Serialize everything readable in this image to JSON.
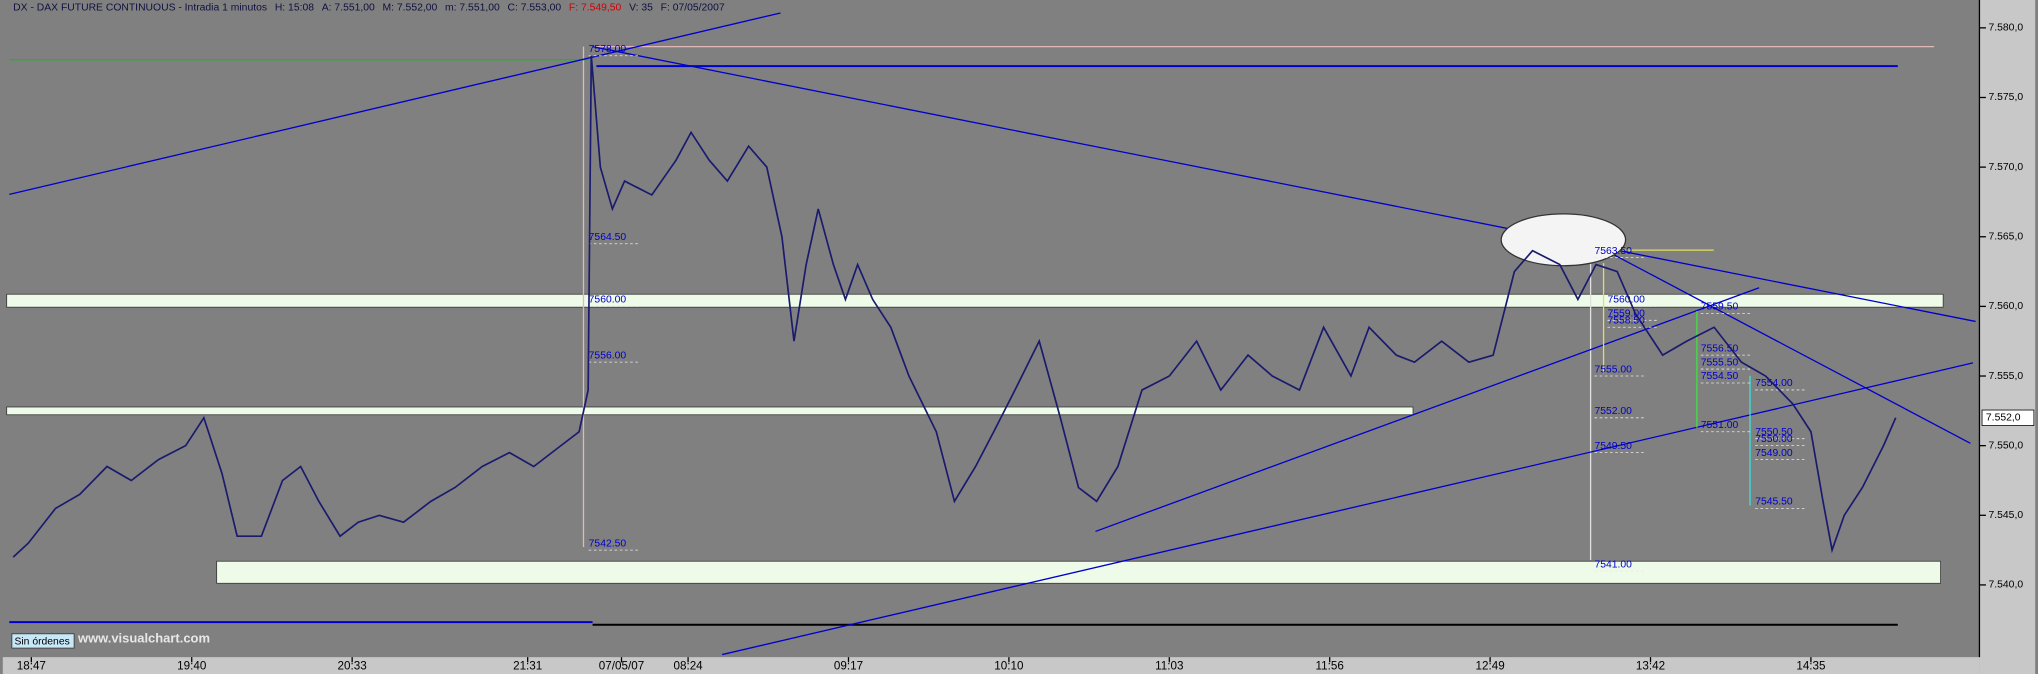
{
  "chart_data": {
    "type": "line",
    "header": [
      "DX - DAX FUTURE CONTINUOUS - Intradia 1 minutos",
      "H: 15:08",
      "A: 7.551,00",
      "M: 7.552,00",
      "m: 7.551,00",
      "C: 7.553,00",
      "F: 7.549,50",
      "V: 35",
      "F: 07/05/2007"
    ],
    "series": [
      {
        "name": "DAX",
        "color": "#1a1a6e",
        "x": [
          -6,
          -1,
          8,
          16,
          25,
          33,
          42,
          51,
          57,
          63,
          68,
          76,
          83,
          89,
          95,
          102,
          108,
          115,
          123,
          132,
          140,
          149,
          158,
          166,
          175,
          181,
          184,
          185,
          188,
          192,
          196,
          205,
          213,
          218,
          224,
          230,
          237,
          243,
          248,
          252,
          256,
          260,
          265,
          269,
          273,
          278,
          284,
          290,
          299,
          305,
          312,
          318,
          325,
          333,
          340,
          346,
          352,
          359,
          367,
          376,
          385,
          393,
          402,
          410,
          419,
          427,
          436,
          442,
          451,
          457,
          466,
          475,
          483,
          490,
          496,
          505,
          511,
          517,
          524,
          530,
          539,
          547,
          556,
          565,
          573,
          582,
          588,
          592,
          595,
          599,
          605,
          612,
          616
        ],
        "values": [
          7542,
          7543,
          7545.5,
          7546.5,
          7548.5,
          7547.5,
          7549,
          7550,
          7552,
          7548,
          7543.5,
          7543.5,
          7547.5,
          7548.5,
          7546,
          7543.5,
          7544.5,
          7545,
          7544.5,
          7546,
          7547,
          7548.5,
          7549.5,
          7548.5,
          7550,
          7551,
          7554,
          7578,
          7570,
          7567,
          7569,
          7568,
          7570.5,
          7572.5,
          7570.5,
          7569,
          7571.5,
          7570,
          7565,
          7557.5,
          7563,
          7567,
          7563,
          7560.5,
          7563,
          7560.5,
          7558.5,
          7555,
          7551,
          7546,
          7548.5,
          7551,
          7554,
          7557.5,
          7552,
          7547,
          7546,
          7548.5,
          7554,
          7555,
          7557.5,
          7554,
          7556.5,
          7555,
          7554,
          7558.5,
          7555,
          7558.5,
          7556.5,
          7556,
          7557.5,
          7556,
          7556.5,
          7562.5,
          7564,
          7563,
          7560.5,
          7563,
          7562.5,
          7559.5,
          7556.5,
          7557.5,
          7558.5,
          7556,
          7555,
          7553,
          7551,
          7546,
          7542.5,
          7545,
          7547,
          7550,
          7552
        ]
      }
    ],
    "xlim": [
      -9,
      644
    ],
    "xticks": [
      {
        "value": 0,
        "label": "18:47"
      },
      {
        "value": 53,
        "label": "19:40"
      },
      {
        "value": 106,
        "label": "20:33"
      },
      {
        "value": 164,
        "label": "21:31"
      },
      {
        "value": 195,
        "label": "07/05/07"
      },
      {
        "value": 217,
        "label": "08:24"
      },
      {
        "value": 270,
        "label": "09:17"
      },
      {
        "value": 323,
        "label": "10:10"
      },
      {
        "value": 376,
        "label": "11:03"
      },
      {
        "value": 429,
        "label": "11:56"
      },
      {
        "value": 482,
        "label": "12:49"
      },
      {
        "value": 535,
        "label": "13:42"
      },
      {
        "value": 588,
        "label": "14:35"
      }
    ],
    "ylim": [
      7535,
      7582
    ],
    "yticks": [
      {
        "value": 7540,
        "label": "7.540,0"
      },
      {
        "value": 7545,
        "label": "7.545,0"
      },
      {
        "value": 7550,
        "label": "7.550,0"
      },
      {
        "value": 7555,
        "label": "7.555,0"
      },
      {
        "value": 7560,
        "label": "7.560,0"
      },
      {
        "value": 7565,
        "label": "7.565,0"
      },
      {
        "value": 7570,
        "label": "7.570,0"
      },
      {
        "value": 7575,
        "label": "7.575,0"
      },
      {
        "value": 7580,
        "label": "7.580,0"
      }
    ],
    "last_price": {
      "value": 7552,
      "label": "7.552,0"
    },
    "annotations": [
      {
        "value": 7578,
        "label": "7578.00"
      },
      {
        "value": 7564.5,
        "label": "7564.50"
      },
      {
        "value": 7560,
        "label": "7560.00"
      },
      {
        "value": 7556,
        "label": "7556.00"
      },
      {
        "value": 7542.5,
        "label": "7542.50"
      },
      {
        "value": 7563.5,
        "label": "7563.50"
      },
      {
        "value": 7560,
        "label": "7560.00"
      },
      {
        "value": 7559,
        "label": "7559.00"
      },
      {
        "value": 7558.5,
        "label": "7558.50"
      },
      {
        "value": 7555,
        "label": "7555.00"
      },
      {
        "value": 7552,
        "label": "7552.00"
      },
      {
        "value": 7549.5,
        "label": "7549.50"
      },
      {
        "value": 7541,
        "label": "7541.00"
      },
      {
        "value": 7559.5,
        "label": "7559.50"
      },
      {
        "value": 7556.5,
        "label": "7556.50"
      },
      {
        "value": 7555.5,
        "label": "7555.50"
      },
      {
        "value": 7554.5,
        "label": "7554.50"
      },
      {
        "value": 7551,
        "label": "7551.00"
      },
      {
        "value": 7554,
        "label": "7554.00"
      },
      {
        "value": 7550.5,
        "label": "7550.50"
      },
      {
        "value": 7550,
        "label": "7550.00"
      },
      {
        "value": 7549,
        "label": "7549.00"
      },
      {
        "value": 7545.5,
        "label": "7545.50"
      }
    ],
    "button": "Sin órdenes",
    "watermark": "www.visualchart.com"
  }
}
